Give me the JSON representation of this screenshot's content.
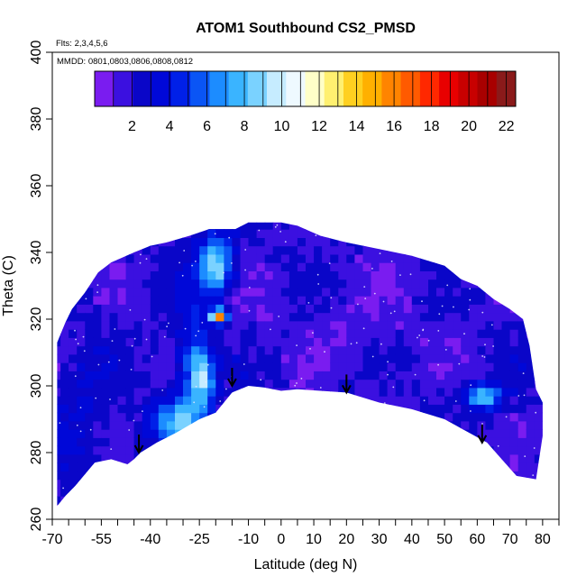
{
  "chart_data": {
    "type": "heatmap",
    "title": "ATOM1 Southbound CS2_PMSD",
    "subtitle_flights": "Flts: 2,3,4,5,6",
    "subtitle_dates": "MMDD: 0801,0803,0806,0808,0812",
    "xlabel": "Latitude (deg N)",
    "ylabel": "Theta (C)",
    "xlim": [
      -70,
      85
    ],
    "ylim": [
      260,
      400
    ],
    "x_major_ticks": [
      -70,
      -55,
      -40,
      -25,
      -10,
      0,
      10,
      20,
      30,
      40,
      50,
      60,
      70,
      80
    ],
    "x_major_labels": [
      "-70",
      "-55",
      "-40",
      "-25",
      "-10",
      "0",
      "10",
      "20",
      "30",
      "40",
      "50",
      "60",
      "70",
      "80"
    ],
    "x_minor_ticks": [
      -65,
      -60,
      -50,
      -45,
      -35,
      -30,
      -20,
      -15,
      -5,
      5,
      15,
      25,
      35,
      45,
      55,
      65,
      75,
      85
    ],
    "y_ticks": [
      260,
      280,
      300,
      320,
      340,
      360,
      380,
      400
    ],
    "y_labels": [
      "260",
      "280",
      "300",
      "320",
      "340",
      "360",
      "380",
      "400"
    ],
    "colorbar": {
      "range": [
        0,
        22.5
      ],
      "ticks": [
        2,
        4,
        6,
        8,
        10,
        12,
        14,
        16,
        18,
        20,
        22
      ],
      "tick_labels": [
        "2",
        "4",
        "6",
        "8",
        "10",
        "12",
        "14",
        "16",
        "18",
        "20",
        "22"
      ],
      "colors": [
        "#7a1cf0",
        "#3b10e0",
        "#0a06c8",
        "#0008d8",
        "#0020e8",
        "#0a55f5",
        "#1c8cff",
        "#3ab4ff",
        "#7ad2ff",
        "#c6ecff",
        "#eef9ff",
        "#ffffc8",
        "#fff070",
        "#ffd020",
        "#ffb000",
        "#ff8400",
        "#ff5a00",
        "#ff2800",
        "#e80000",
        "#c80000",
        "#a80000",
        "#8a1a1a"
      ]
    },
    "top_boundary": [
      [
        -68.5,
        313
      ],
      [
        -66,
        319
      ],
      [
        -64,
        323
      ],
      [
        -60,
        328
      ],
      [
        -56,
        334
      ],
      [
        -52,
        337
      ],
      [
        -45,
        340
      ],
      [
        -40,
        342
      ],
      [
        -35,
        343
      ],
      [
        -28,
        345
      ],
      [
        -22,
        347
      ],
      [
        -14,
        347
      ],
      [
        -10,
        349
      ],
      [
        0,
        349
      ],
      [
        5,
        348
      ],
      [
        12,
        345
      ],
      [
        20,
        343
      ],
      [
        30,
        341
      ],
      [
        40,
        339
      ],
      [
        50,
        336
      ],
      [
        55,
        332
      ],
      [
        60,
        330
      ],
      [
        65,
        326
      ],
      [
        70,
        323
      ],
      [
        74,
        320
      ],
      [
        76,
        312
      ],
      [
        78,
        299
      ],
      [
        80,
        295
      ],
      [
        80,
        285
      ]
    ],
    "bottom_boundary": [
      [
        78,
        272
      ],
      [
        72,
        273
      ],
      [
        63,
        283
      ],
      [
        50,
        290
      ],
      [
        40,
        293
      ],
      [
        30,
        295
      ],
      [
        20,
        298
      ],
      [
        12,
        298.5
      ],
      [
        5,
        299
      ],
      [
        0,
        298.5
      ],
      [
        -5,
        299.5
      ],
      [
        -10,
        300
      ],
      [
        -15,
        298
      ],
      [
        -20,
        292
      ],
      [
        -25,
        290
      ],
      [
        -32,
        286
      ],
      [
        -38,
        283
      ],
      [
        -43,
        280
      ],
      [
        -45,
        278
      ],
      [
        -47,
        276.5
      ],
      [
        -52,
        278
      ],
      [
        -57,
        277
      ],
      [
        -63,
        270
      ],
      [
        -66,
        267
      ],
      [
        -68.5,
        264
      ]
    ],
    "field": {
      "background_value": 2,
      "anomalies": [
        {
          "x": -27.5,
          "y": 300,
          "sx": 3.5,
          "sy": 18,
          "value": 5.5
        },
        {
          "x": -24,
          "y": 303,
          "sx": 2.5,
          "sy": 6,
          "value": 8.5
        },
        {
          "x": -20,
          "y": 336,
          "sx": 3.5,
          "sy": 6,
          "value": 9.5
        },
        {
          "x": -19,
          "y": 321,
          "sx": 1.8,
          "sy": 1.5,
          "value": 15.5
        },
        {
          "x": -33,
          "y": 289,
          "sx": 5,
          "sy": 5,
          "value": 6.5
        },
        {
          "x": 62,
          "y": 297,
          "sx": 4,
          "sy": 2.5,
          "value": 8.5
        },
        {
          "x": -62,
          "y": 290,
          "sx": 6,
          "sy": 14,
          "value": 3.2
        },
        {
          "x": 20,
          "y": 320,
          "sx": 25,
          "sy": 15,
          "value": 1.4
        }
      ]
    },
    "arrows": [
      {
        "lat": -43.5,
        "theta": 280
      },
      {
        "lat": -15,
        "theta": 300
      },
      {
        "lat": 20,
        "theta": 298
      },
      {
        "lat": 61.5,
        "theta": 283
      }
    ]
  }
}
